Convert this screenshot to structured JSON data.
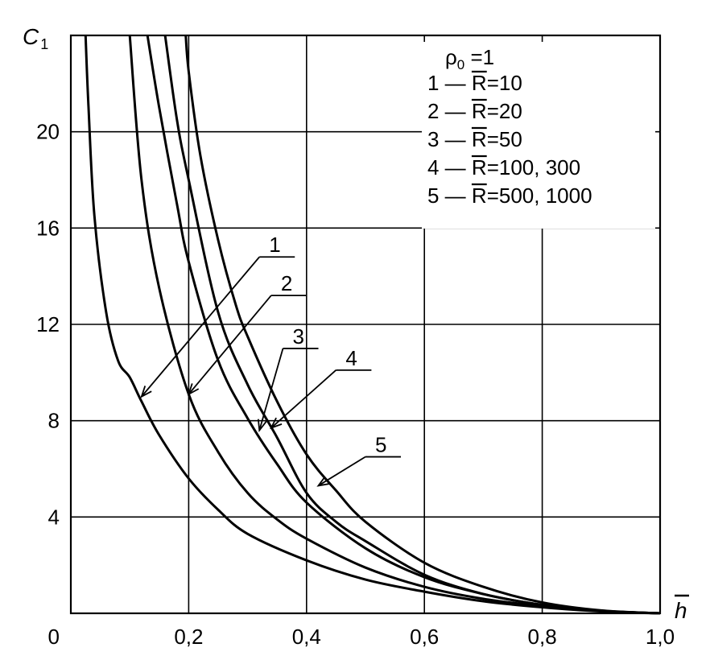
{
  "chart_data": {
    "type": "line",
    "ylabel": "C",
    "ylabel_sub": "1",
    "xlabel": "h",
    "xlim": [
      0,
      1.0
    ],
    "ylim": [
      0,
      24
    ],
    "grid": true,
    "x_ticks": [
      {
        "value": 0.2,
        "label": "0,2"
      },
      {
        "value": 0.4,
        "label": "0,4"
      },
      {
        "value": 0.6,
        "label": "0,6"
      },
      {
        "value": 0.8,
        "label": "0,8"
      },
      {
        "value": 1.0,
        "label": "1,0"
      }
    ],
    "y_ticks": [
      {
        "value": 4,
        "label": "4"
      },
      {
        "value": 8,
        "label": "8"
      },
      {
        "value": 12,
        "label": "12"
      },
      {
        "value": 16,
        "label": "16"
      },
      {
        "value": 20,
        "label": "20"
      }
    ],
    "origin_label": "0",
    "legend": {
      "placement": "top-right",
      "header": {
        "rho": "ρ",
        "sub": "0",
        "eq": " =1"
      },
      "entries": [
        {
          "num": "1",
          "dash": " — ",
          "sym": "R",
          "rest": "=10"
        },
        {
          "num": "2",
          "dash": " — ",
          "sym": "R",
          "rest": "=20"
        },
        {
          "num": "3",
          "dash": " — ",
          "sym": "R",
          "rest": "=50"
        },
        {
          "num": "4",
          "dash": " — ",
          "sym": "R",
          "rest": "=100, 300"
        },
        {
          "num": "5",
          "dash": " — ",
          "sym": "R",
          "rest": "=500, 1000"
        }
      ]
    },
    "series": [
      {
        "label": "1",
        "marker": {
          "x": 0.12,
          "y": 9.0
        },
        "label_pos": {
          "x": 0.32,
          "y": 14.8
        },
        "x": [
          0.025,
          0.03,
          0.04,
          0.06,
          0.08,
          0.1,
          0.12,
          0.15,
          0.2,
          0.25,
          0.3,
          0.4,
          0.5,
          0.6,
          0.7,
          0.8,
          0.9,
          1.0
        ],
        "y": [
          24,
          21.0,
          16.5,
          12.5,
          10.5,
          9.8,
          8.8,
          7.4,
          5.6,
          4.3,
          3.3,
          2.2,
          1.4,
          0.9,
          0.5,
          0.25,
          0.08,
          0
        ]
      },
      {
        "label": "2",
        "marker": {
          "x": 0.2,
          "y": 9.1
        },
        "label_pos": {
          "x": 0.34,
          "y": 13.2
        },
        "x": [
          0.1,
          0.12,
          0.15,
          0.2,
          0.25,
          0.3,
          0.35,
          0.4,
          0.5,
          0.6,
          0.7,
          0.8,
          0.9,
          1.0
        ],
        "y": [
          24,
          18.0,
          13.5,
          9.1,
          6.7,
          5.0,
          3.9,
          3.1,
          1.9,
          1.1,
          0.6,
          0.3,
          0.1,
          0
        ]
      },
      {
        "label": "3",
        "marker": {
          "x": 0.32,
          "y": 7.6
        },
        "label_pos": {
          "x": 0.36,
          "y": 11.0
        },
        "x": [
          0.13,
          0.15,
          0.18,
          0.2,
          0.25,
          0.3,
          0.35,
          0.4,
          0.5,
          0.6,
          0.7,
          0.8,
          0.9,
          1.0
        ],
        "y": [
          24,
          21.0,
          17.0,
          14.6,
          10.5,
          8.1,
          6.2,
          4.6,
          2.7,
          1.5,
          0.8,
          0.35,
          0.1,
          0
        ]
      },
      {
        "label": "4",
        "marker": {
          "x": 0.34,
          "y": 7.7
        },
        "label_pos": {
          "x": 0.45,
          "y": 10.1
        },
        "x": [
          0.16,
          0.18,
          0.2,
          0.25,
          0.3,
          0.35,
          0.4,
          0.45,
          0.5,
          0.6,
          0.7,
          0.8,
          0.9,
          1.0
        ],
        "y": [
          24,
          20.5,
          18.0,
          12.5,
          9.5,
          7.3,
          5.0,
          3.8,
          3.0,
          1.6,
          0.8,
          0.35,
          0.1,
          0
        ]
      },
      {
        "label": "5",
        "marker": {
          "x": 0.42,
          "y": 5.3
        },
        "label_pos": {
          "x": 0.5,
          "y": 6.5
        },
        "x": [
          0.195,
          0.2,
          0.22,
          0.25,
          0.28,
          0.3,
          0.35,
          0.4,
          0.45,
          0.5,
          0.6,
          0.7,
          0.8,
          0.9,
          1.0
        ],
        "y": [
          24,
          22.5,
          19.0,
          15.5,
          12.8,
          11.5,
          8.8,
          6.6,
          5.1,
          3.8,
          2.1,
          1.1,
          0.45,
          0.12,
          0
        ]
      }
    ]
  }
}
